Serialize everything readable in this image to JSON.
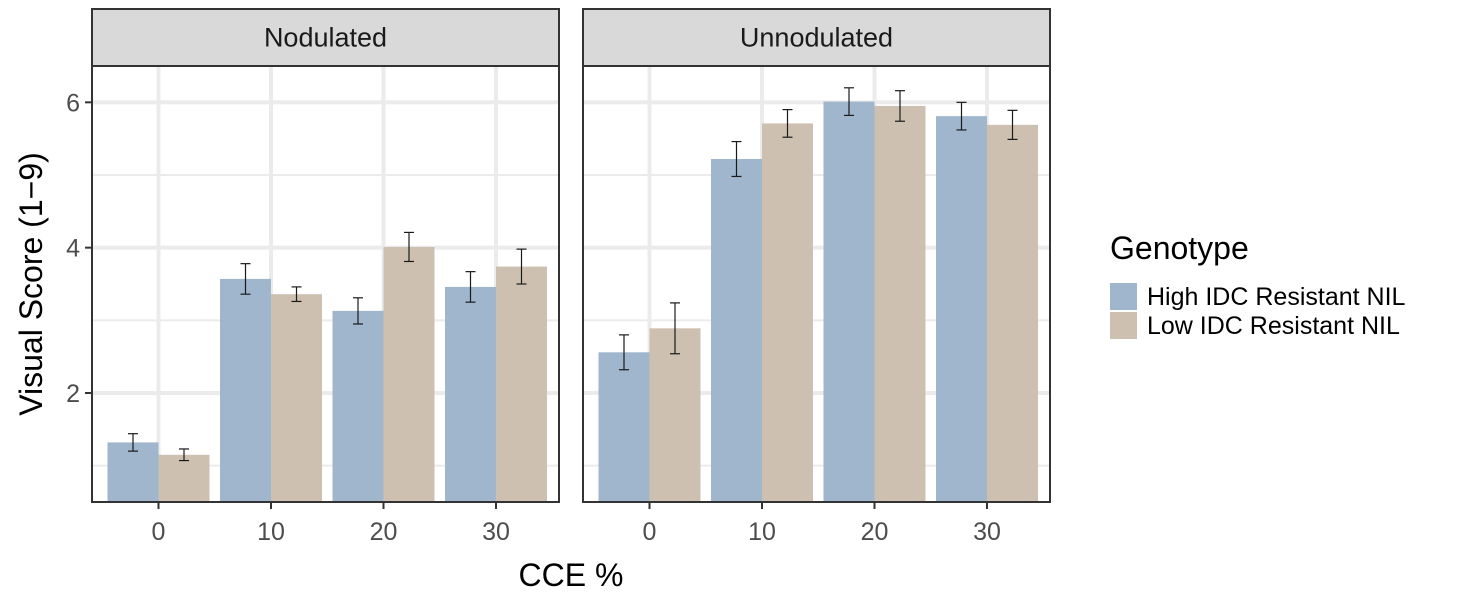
{
  "chart_data": {
    "type": "bar",
    "xlabel": "CCE %",
    "ylabel": "Visual Score (1−9)",
    "ylim": [
      0.5,
      6.5
    ],
    "yticks": [
      2,
      4,
      6
    ],
    "categories": [
      "0",
      "10",
      "20",
      "30"
    ],
    "grid": true,
    "legend_title": "Genotype",
    "legend_position": "right",
    "panels": [
      {
        "title": "Nodulated",
        "series": [
          {
            "name": "High IDC Resistant NIL",
            "color": "#9fb6cd",
            "values": [
              1.32,
              3.57,
              3.13,
              3.46
            ],
            "errors": [
              0.12,
              0.21,
              0.18,
              0.21
            ]
          },
          {
            "name": "Low IDC Resistant NIL",
            "color": "#cdc0b0",
            "values": [
              1.15,
              3.36,
              4.01,
              3.74
            ],
            "errors": [
              0.08,
              0.1,
              0.2,
              0.24
            ]
          }
        ]
      },
      {
        "title": "Unnodulated",
        "series": [
          {
            "name": "High IDC Resistant NIL",
            "color": "#9fb6cd",
            "values": [
              2.56,
              5.22,
              6.01,
              5.81
            ],
            "errors": [
              0.24,
              0.24,
              0.19,
              0.19
            ]
          },
          {
            "name": "Low IDC Resistant NIL",
            "color": "#cdc0b0",
            "values": [
              2.89,
              5.71,
              5.95,
              5.69
            ],
            "errors": [
              0.35,
              0.19,
              0.21,
              0.2
            ]
          }
        ]
      }
    ]
  }
}
